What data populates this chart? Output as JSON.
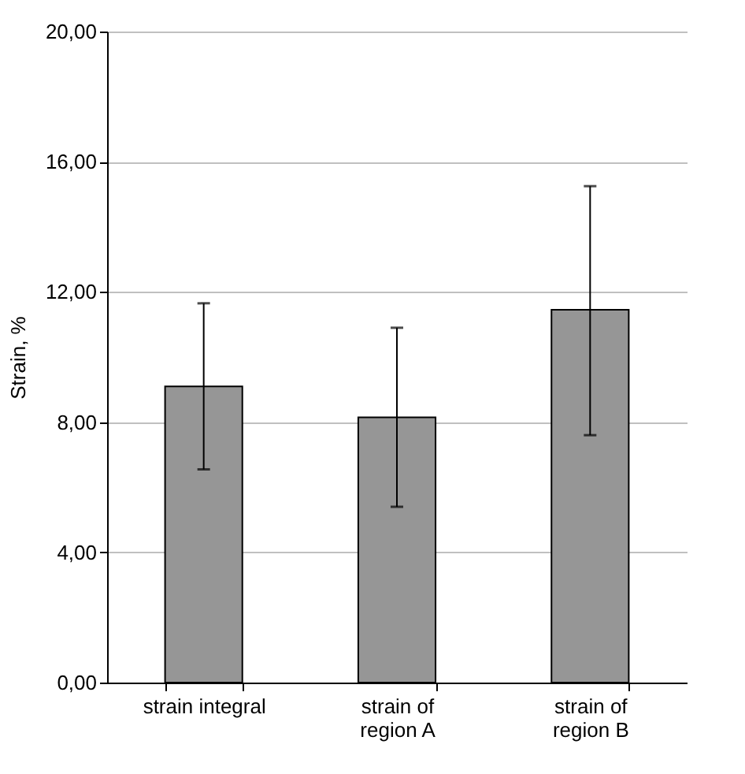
{
  "chart_data": {
    "type": "bar",
    "ylabel": "Strain, %",
    "categories": [
      "strain integral",
      "strain of region A",
      "strain of region B"
    ],
    "values": [
      9.1,
      8.15,
      11.45
    ],
    "errors": [
      [
        6.55,
        11.65
      ],
      [
        5.4,
        10.9
      ],
      [
        7.6,
        15.25
      ]
    ],
    "color": "#969696",
    "ylim": [
      0,
      20
    ],
    "yticks": [
      {
        "value": 0,
        "label": "0,00"
      },
      {
        "value": 4,
        "label": "4,00"
      },
      {
        "value": 8,
        "label": "8,00"
      },
      {
        "value": 12,
        "label": "12,00"
      },
      {
        "value": 16,
        "label": "16,00"
      },
      {
        "value": 20,
        "label": "20,00"
      }
    ],
    "grid": "y"
  }
}
